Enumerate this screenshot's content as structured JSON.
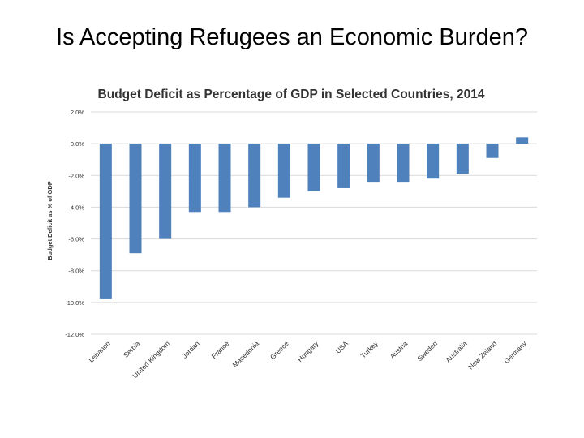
{
  "slide": {
    "title": "Is Accepting Refugees an Economic Burden?"
  },
  "chart_data": {
    "type": "bar",
    "title": "Budget Deficit as Percentage of GDP in Selected Countries, 2014",
    "xlabel": "",
    "ylabel": "Budget Deficit as % of GDP",
    "ylim": [
      -12,
      2
    ],
    "yticks": [
      2,
      0,
      -2,
      -4,
      -6,
      -8,
      -10,
      -12
    ],
    "ytick_labels": [
      "2.0%",
      "0.0%",
      "-2.0%",
      "-4.0%",
      "-6.0%",
      "-8.0%",
      "-10.0%",
      "-12.0%"
    ],
    "grid": true,
    "bar_color": "#4f81bd",
    "grid_color": "#d9d9d9",
    "categories": [
      "Lebanon",
      "Serbia",
      "United Kingdom",
      "Jordan",
      "France",
      "Macedonia",
      "Greece",
      "Hungary",
      "USA",
      "Turkey",
      "Austria",
      "Sweden",
      "Australia",
      "New Zeland",
      "Germany"
    ],
    "values": [
      -9.8,
      -6.9,
      -6.0,
      -4.3,
      -4.3,
      -4.0,
      -3.4,
      -3.0,
      -2.8,
      -2.4,
      -2.4,
      -2.2,
      -1.9,
      -0.9,
      0.4
    ]
  }
}
